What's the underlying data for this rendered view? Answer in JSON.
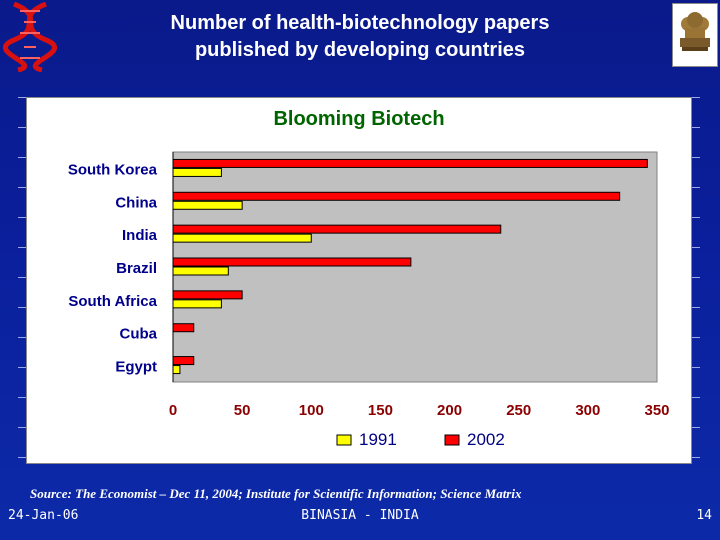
{
  "slide": {
    "title_line1": "Number of health-biotechnology papers",
    "title_line2": "published by developing countries",
    "source": "Source: The Economist – Dec 11, 2004; Institute for Scientific Information; Science Matrix",
    "footer_date": "24-Jan-06",
    "footer_center": "BINASIA - INDIA",
    "page_number": "14"
  },
  "chart_data": {
    "type": "bar",
    "orientation": "horizontal",
    "title": "Blooming Biotech",
    "categories": [
      "South Korea",
      "China",
      "India",
      "Brazil",
      "South Africa",
      "Cuba",
      "Egypt"
    ],
    "series": [
      {
        "name": "1991",
        "color": "#ffff00",
        "values": [
          35,
          50,
          100,
          40,
          35,
          0,
          5
        ]
      },
      {
        "name": "2002",
        "color": "#ff0000",
        "values": [
          343,
          323,
          237,
          172,
          50,
          15,
          15
        ]
      }
    ],
    "xlim": [
      0,
      350
    ],
    "x_ticks": [
      "0",
      "50",
      "100",
      "150",
      "200",
      "250",
      "300",
      "350"
    ],
    "legend_position": "bottom",
    "plot_background": "#c0c0c0"
  }
}
